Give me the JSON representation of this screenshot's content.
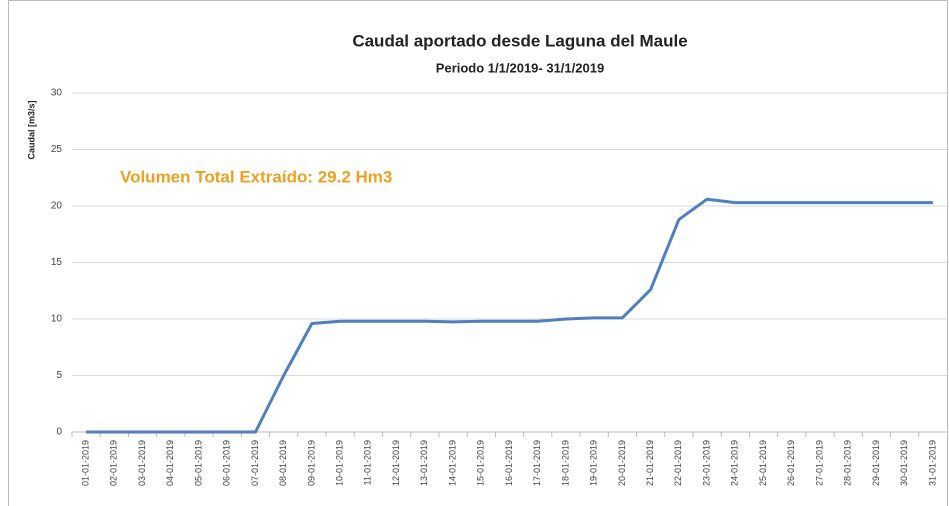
{
  "chart_data": {
    "type": "line",
    "title": "Caudal aportado desde Laguna del Maule",
    "subtitle": "Periodo 1/1/2019- 31/1/2019",
    "y_label": "Caudal [m3/s]",
    "annotation": "Volumen Total Extraído: 29.2 Hm3",
    "categories": [
      "01-01-2019",
      "02-01-2019",
      "03-01-2019",
      "04-01-2019",
      "05-01-2019",
      "06-01-2019",
      "07-01-2019",
      "08-01-2019",
      "09-01-2019",
      "10-01-2019",
      "11-01-2019",
      "12-01-2019",
      "13-01-2019",
      "14-01-2019",
      "15-01-2019",
      "16-01-2019",
      "17-01-2019",
      "18-01-2019",
      "19-01-2019",
      "20-01-2019",
      "21-01-2019",
      "22-01-2019",
      "23-01-2019",
      "24-01-2019",
      "25-01-2019",
      "26-01-2019",
      "27-01-2019",
      "28-01-2019",
      "29-01-2019",
      "30-01-2019",
      "31-01-2019"
    ],
    "values": [
      0,
      0,
      0,
      0,
      0,
      0,
      0,
      5.0,
      9.6,
      9.8,
      9.8,
      9.8,
      9.8,
      9.75,
      9.8,
      9.8,
      9.8,
      10.0,
      10.1,
      10.1,
      12.6,
      18.8,
      20.6,
      20.3,
      20.3,
      20.3,
      20.3,
      20.3,
      20.3,
      20.3,
      20.3
    ],
    "color": "#4f7fbf",
    "ylim": [
      0,
      30
    ],
    "yticks": [
      0,
      5,
      10,
      15,
      20,
      25,
      30
    ],
    "grid": true
  }
}
